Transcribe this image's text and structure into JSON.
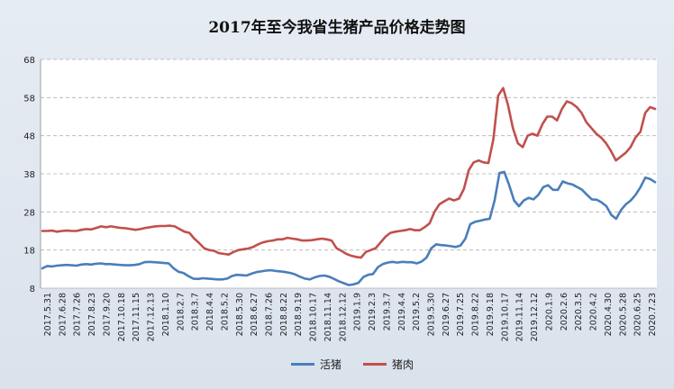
{
  "chart_data": {
    "type": "line",
    "title": "2017年至今我省生猪产品价格走势图",
    "ylim": [
      8,
      68
    ],
    "yticks": [
      8,
      18,
      28,
      38,
      48,
      58,
      68
    ],
    "grid": true,
    "legend_position": "bottom",
    "x_tick_labels": [
      "2017.5.31",
      "2017.6.28",
      "2017.7.26",
      "2017.8.23",
      "2017.9.20",
      "2017.10.18",
      "2017.11.15",
      "2017.12.13",
      "2018.1.10",
      "2018.2.7",
      "2018.3.7",
      "2018.4.4",
      "2018.5.2",
      "2018.5.30",
      "2018.6.27",
      "2018.7.26",
      "2018.8.22",
      "2018.9.19",
      "2018.10.17",
      "2018.11.14",
      "2018.12.12",
      "2019.1.9",
      "2019.2.3",
      "2019.3.7",
      "2019.4.4",
      "2019.5.2",
      "2019.5.30",
      "2019.6.27",
      "2019.7.25",
      "2019.8.22",
      "2019.9.18",
      "2019.10.17",
      "2019.11.14",
      "2019.12.12",
      "2020.1.9",
      "2020.2.6",
      "2020.3.5",
      "2020.4.2",
      "2020.4.30",
      "2020.5.28",
      "2020.6.25",
      "2020.7.23"
    ],
    "series": [
      {
        "name": "活猪",
        "color": "#4a7ebb",
        "values": [
          13.2,
          13.8,
          13.7,
          13.9,
          14.0,
          14.1,
          14.0,
          13.9,
          14.2,
          14.3,
          14.2,
          14.4,
          14.5,
          14.3,
          14.3,
          14.2,
          14.1,
          14.0,
          14.0,
          14.1,
          14.3,
          14.8,
          14.9,
          14.8,
          14.7,
          14.6,
          14.5,
          13.2,
          12.3,
          12.0,
          11.2,
          10.5,
          10.4,
          10.6,
          10.5,
          10.4,
          10.3,
          10.3,
          10.5,
          11.2,
          11.5,
          11.4,
          11.3,
          11.8,
          12.2,
          12.4,
          12.6,
          12.7,
          12.5,
          12.4,
          12.2,
          12.0,
          11.6,
          11.0,
          10.5,
          10.3,
          10.8,
          11.2,
          11.3,
          11.0,
          10.4,
          9.8,
          9.3,
          8.8,
          9.0,
          9.4,
          10.9,
          11.5,
          11.7,
          13.5,
          14.3,
          14.7,
          14.9,
          14.7,
          14.9,
          14.8,
          14.8,
          14.5,
          15.0,
          16.0,
          18.5,
          19.5,
          19.3,
          19.2,
          19.0,
          18.8,
          19.2,
          21.0,
          24.8,
          25.4,
          25.7,
          26.0,
          26.2,
          31.0,
          38.2,
          38.5,
          35.0,
          31.0,
          29.5,
          31.0,
          31.7,
          31.3,
          32.5,
          34.5,
          35.0,
          33.8,
          33.8,
          36.0,
          35.5,
          35.2,
          34.5,
          33.8,
          32.5,
          31.3,
          31.2,
          30.5,
          29.5,
          27.2,
          26.2,
          28.5,
          30.0,
          31.0,
          32.5,
          34.5,
          37.0,
          36.6,
          35.8
        ]
      },
      {
        "name": "猪肉",
        "color": "#c0504d",
        "values": [
          23.0,
          23.0,
          23.1,
          22.8,
          23.0,
          23.1,
          23.0,
          23.0,
          23.3,
          23.5,
          23.4,
          23.8,
          24.2,
          24.0,
          24.2,
          24.0,
          23.8,
          23.7,
          23.5,
          23.3,
          23.5,
          23.8,
          24.0,
          24.2,
          24.3,
          24.3,
          24.4,
          24.2,
          23.5,
          22.8,
          22.5,
          21.0,
          19.8,
          18.5,
          18.0,
          17.8,
          17.2,
          17.0,
          16.8,
          17.5,
          18.0,
          18.2,
          18.4,
          18.8,
          19.5,
          20.0,
          20.3,
          20.5,
          20.8,
          20.8,
          21.2,
          21.0,
          20.8,
          20.5,
          20.5,
          20.6,
          20.8,
          21.0,
          20.8,
          20.5,
          18.5,
          17.8,
          17.0,
          16.5,
          16.2,
          16.0,
          17.5,
          18.0,
          18.5,
          20.0,
          21.5,
          22.5,
          22.8,
          23.0,
          23.2,
          23.5,
          23.2,
          23.2,
          24.0,
          25.0,
          28.0,
          30.0,
          30.8,
          31.5,
          31.0,
          31.5,
          34.0,
          39.0,
          41.0,
          41.5,
          41.0,
          40.8,
          47.0,
          58.5,
          60.5,
          56.0,
          50.0,
          46.0,
          45.0,
          48.0,
          48.5,
          48.0,
          51.0,
          53.0,
          53.0,
          52.0,
          55.0,
          57.0,
          56.5,
          55.5,
          54.0,
          51.5,
          50.0,
          48.5,
          47.5,
          46.0,
          44.0,
          41.5,
          42.5,
          43.5,
          45.0,
          47.5,
          49.0,
          54.0,
          55.5,
          55.0
        ]
      }
    ]
  }
}
